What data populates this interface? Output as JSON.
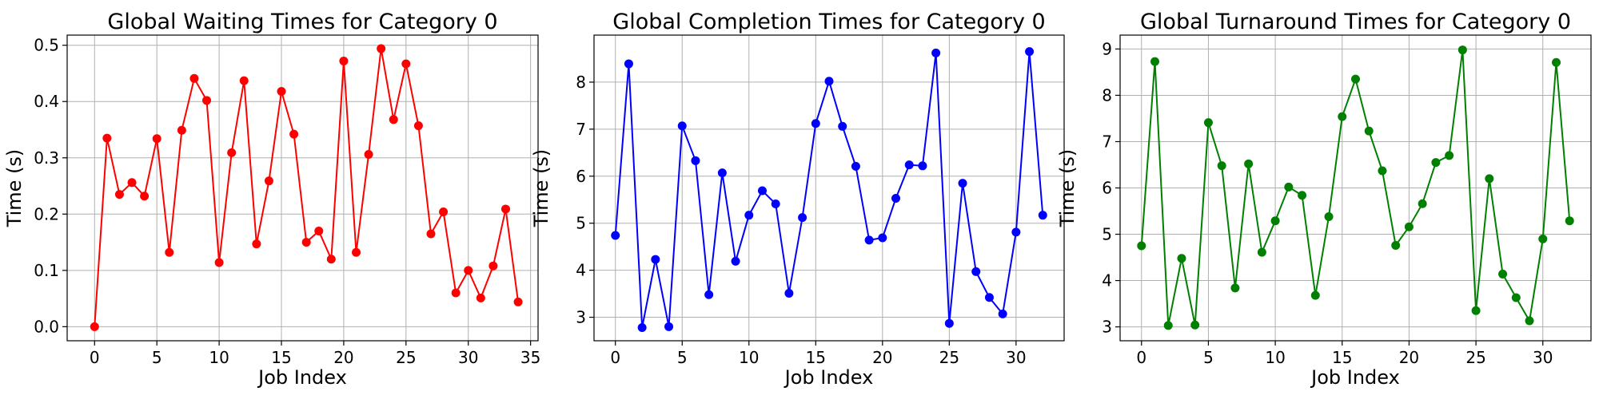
{
  "chart_data": [
    {
      "type": "line",
      "title": "Global Waiting Times for Category 0",
      "xlabel": "Job Index",
      "ylabel": "Time (s)",
      "xlim": [
        -2.2,
        35.6
      ],
      "ylim": [
        -0.025,
        0.518
      ],
      "xticks": [
        0,
        5,
        10,
        15,
        20,
        25,
        30,
        35
      ],
      "yticks": [
        0.0,
        0.1,
        0.2,
        0.3,
        0.4,
        0.5
      ],
      "ytick_labels": [
        "0.0",
        "0.1",
        "0.2",
        "0.3",
        "0.4",
        "0.5"
      ],
      "grid": true,
      "series": [
        {
          "color": "#ff0000",
          "marker": "circle",
          "x": [
            0,
            1,
            2,
            3,
            4,
            5,
            6,
            7,
            8,
            9,
            10,
            11,
            12,
            13,
            14,
            15,
            16,
            17,
            18,
            19,
            20,
            21,
            22,
            23,
            24,
            25,
            26,
            27,
            28,
            29,
            30,
            31,
            32,
            33,
            34
          ],
          "y": [
            0.0,
            0.335,
            0.235,
            0.256,
            0.232,
            0.334,
            0.132,
            0.349,
            0.441,
            0.402,
            0.114,
            0.309,
            0.437,
            0.147,
            0.259,
            0.418,
            0.342,
            0.15,
            0.17,
            0.12,
            0.472,
            0.132,
            0.306,
            0.494,
            0.368,
            0.467,
            0.357,
            0.165,
            0.204,
            0.06,
            0.1,
            0.051,
            0.108,
            0.209,
            0.044
          ]
        }
      ]
    },
    {
      "type": "line",
      "title": "Global Completion Times for Category 0",
      "xlabel": "Job Index",
      "ylabel": "Time (s)",
      "xlim": [
        -1.6,
        33.6
      ],
      "ylim": [
        2.5,
        9.0
      ],
      "xticks": [
        0,
        5,
        10,
        15,
        20,
        25,
        30
      ],
      "yticks": [
        3,
        4,
        5,
        6,
        7,
        8
      ],
      "ytick_labels": [
        "3",
        "4",
        "5",
        "6",
        "7",
        "8"
      ],
      "grid": true,
      "series": [
        {
          "color": "#0000ff",
          "marker": "circle",
          "x": [
            0,
            1,
            2,
            3,
            4,
            5,
            6,
            7,
            8,
            9,
            10,
            11,
            12,
            13,
            14,
            15,
            16,
            17,
            18,
            19,
            20,
            21,
            22,
            23,
            24,
            25,
            26,
            27,
            28,
            29,
            30,
            31,
            32
          ],
          "y": [
            4.74,
            8.39,
            2.78,
            4.23,
            2.8,
            7.07,
            6.33,
            3.48,
            6.07,
            4.19,
            5.17,
            5.69,
            5.41,
            3.51,
            5.12,
            7.12,
            8.02,
            7.06,
            6.21,
            4.64,
            4.69,
            5.53,
            6.24,
            6.22,
            8.62,
            2.87,
            5.85,
            3.97,
            3.42,
            3.07,
            4.81,
            8.65,
            5.17
          ]
        }
      ]
    },
    {
      "type": "line",
      "title": "Global Turnaround Times for Category 0",
      "xlabel": "Job Index",
      "ylabel": "Time (s)",
      "xlim": [
        -1.6,
        33.6
      ],
      "ylim": [
        2.7,
        9.3
      ],
      "xticks": [
        0,
        5,
        10,
        15,
        20,
        25,
        30
      ],
      "yticks": [
        3,
        4,
        5,
        6,
        7,
        8,
        9
      ],
      "ytick_labels": [
        "3",
        "4",
        "5",
        "6",
        "7",
        "8",
        "9"
      ],
      "grid": true,
      "series": [
        {
          "color": "#008000",
          "marker": "circle",
          "x": [
            0,
            1,
            2,
            3,
            4,
            5,
            6,
            7,
            8,
            9,
            10,
            11,
            12,
            13,
            14,
            15,
            16,
            17,
            18,
            19,
            20,
            21,
            22,
            23,
            24,
            25,
            26,
            27,
            28,
            29,
            30,
            31,
            32
          ],
          "y": [
            4.75,
            8.73,
            3.03,
            4.48,
            3.04,
            7.41,
            6.48,
            3.84,
            6.52,
            4.61,
            5.29,
            6.02,
            5.84,
            3.68,
            5.38,
            7.54,
            8.35,
            7.23,
            6.37,
            4.76,
            5.16,
            5.66,
            6.55,
            6.7,
            8.98,
            3.35,
            6.2,
            4.14,
            3.63,
            3.13,
            4.9,
            8.71,
            5.29
          ]
        }
      ]
    }
  ]
}
